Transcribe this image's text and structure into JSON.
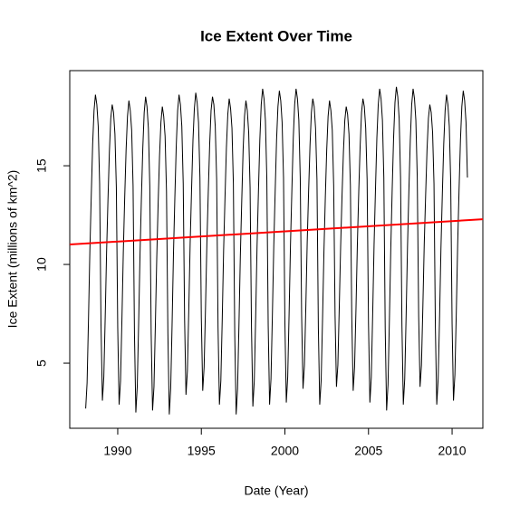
{
  "chart_data": {
    "type": "line",
    "title": "Ice Extent Over Time",
    "xlabel": "Date (Year)",
    "ylabel": "Ice Extent (millions of km^2)",
    "xlim": [
      1987.13,
      2011.84
    ],
    "ylim": [
      1.7,
      19.82
    ],
    "xticks": [
      1990,
      1995,
      2000,
      2005,
      2010
    ],
    "yticks": [
      5,
      10,
      15
    ],
    "x": [
      1988.083,
      1988.167,
      1988.25,
      1988.333,
      1988.417,
      1988.5,
      1988.583,
      1988.667,
      1988.75,
      1988.833,
      1988.917,
      1989,
      1989.083,
      1989.167,
      1989.25,
      1989.333,
      1989.417,
      1989.5,
      1989.583,
      1989.667,
      1989.75,
      1989.833,
      1989.917,
      1990,
      1990.083,
      1990.167,
      1990.25,
      1990.333,
      1990.417,
      1990.5,
      1990.583,
      1990.667,
      1990.75,
      1990.833,
      1990.917,
      1991,
      1991.083,
      1991.167,
      1991.25,
      1991.333,
      1991.417,
      1991.5,
      1991.583,
      1991.667,
      1991.75,
      1991.833,
      1991.917,
      1992,
      1992.083,
      1992.167,
      1992.25,
      1992.333,
      1992.417,
      1992.5,
      1992.583,
      1992.667,
      1992.75,
      1992.833,
      1992.917,
      1993,
      1993.083,
      1993.167,
      1993.25,
      1993.333,
      1993.417,
      1993.5,
      1993.583,
      1993.667,
      1993.75,
      1993.833,
      1993.917,
      1994,
      1994.083,
      1994.167,
      1994.25,
      1994.333,
      1994.417,
      1994.5,
      1994.583,
      1994.667,
      1994.75,
      1994.833,
      1994.917,
      1995,
      1995.083,
      1995.167,
      1995.25,
      1995.333,
      1995.417,
      1995.5,
      1995.583,
      1995.667,
      1995.75,
      1995.833,
      1995.917,
      1996,
      1996.083,
      1996.167,
      1996.25,
      1996.333,
      1996.417,
      1996.5,
      1996.583,
      1996.667,
      1996.75,
      1996.833,
      1996.917,
      1997,
      1997.083,
      1997.167,
      1997.25,
      1997.333,
      1997.417,
      1997.5,
      1997.583,
      1997.667,
      1997.75,
      1997.833,
      1997.917,
      1998,
      1998.083,
      1998.167,
      1998.25,
      1998.333,
      1998.417,
      1998.5,
      1998.583,
      1998.667,
      1998.75,
      1998.833,
      1998.917,
      1999,
      1999.083,
      1999.167,
      1999.25,
      1999.333,
      1999.417,
      1999.5,
      1999.583,
      1999.667,
      1999.75,
      1999.833,
      1999.917,
      2000,
      2000.083,
      2000.167,
      2000.25,
      2000.333,
      2000.417,
      2000.5,
      2000.583,
      2000.667,
      2000.75,
      2000.833,
      2000.917,
      2001,
      2001.083,
      2001.167,
      2001.25,
      2001.333,
      2001.417,
      2001.5,
      2001.583,
      2001.667,
      2001.75,
      2001.833,
      2001.917,
      2002,
      2002.083,
      2002.167,
      2002.25,
      2002.333,
      2002.417,
      2002.5,
      2002.583,
      2002.667,
      2002.75,
      2002.833,
      2002.917,
      2003,
      2003.083,
      2003.167,
      2003.25,
      2003.333,
      2003.417,
      2003.5,
      2003.583,
      2003.667,
      2003.75,
      2003.833,
      2003.917,
      2004,
      2004.083,
      2004.167,
      2004.25,
      2004.333,
      2004.417,
      2004.5,
      2004.583,
      2004.667,
      2004.75,
      2004.833,
      2004.917,
      2005,
      2005.083,
      2005.167,
      2005.25,
      2005.333,
      2005.417,
      2005.5,
      2005.583,
      2005.667,
      2005.75,
      2005.833,
      2005.917,
      2006,
      2006.083,
      2006.167,
      2006.25,
      2006.333,
      2006.417,
      2006.5,
      2006.583,
      2006.667,
      2006.75,
      2006.833,
      2006.917,
      2007,
      2007.083,
      2007.167,
      2007.25,
      2007.333,
      2007.417,
      2007.5,
      2007.583,
      2007.667,
      2007.75,
      2007.833,
      2007.917,
      2008,
      2008.083,
      2008.167,
      2008.25,
      2008.333,
      2008.417,
      2008.5,
      2008.583,
      2008.667,
      2008.75,
      2008.833,
      2008.917,
      2009,
      2009.083,
      2009.167,
      2009.25,
      2009.333,
      2009.417,
      2009.5,
      2009.583,
      2009.667,
      2009.75,
      2009.833,
      2009.917,
      2010,
      2010.083,
      2010.167,
      2010.25,
      2010.333,
      2010.417,
      2010.5,
      2010.583,
      2010.667,
      2010.75,
      2010.833,
      2010.917
    ],
    "series": [
      {
        "color": "#000000",
        "values": [
          2.7,
          4.0,
          7.2,
          10.7,
          13.5,
          16.1,
          17.8,
          18.6,
          18.1,
          17.0,
          14.1,
          6.9,
          3.1,
          4.3,
          7.3,
          10.6,
          13.3,
          15.7,
          17.4,
          18.1,
          17.7,
          16.6,
          13.9,
          6.8,
          2.9,
          4.1,
          7.2,
          10.6,
          13.4,
          15.8,
          17.5,
          18.3,
          17.8,
          16.8,
          14.0,
          6.5,
          2.5,
          3.8,
          7.0,
          10.5,
          13.4,
          15.9,
          17.7,
          18.5,
          18.0,
          16.9,
          14.0,
          6.5,
          2.6,
          3.8,
          6.9,
          10.3,
          13.1,
          15.5,
          17.2,
          18.0,
          17.5,
          16.5,
          13.7,
          6.5,
          2.4,
          3.7,
          6.9,
          10.5,
          13.4,
          16.0,
          17.8,
          18.6,
          18.1,
          17.0,
          14.1,
          7.2,
          3.4,
          4.6,
          7.7,
          11.1,
          13.8,
          16.3,
          17.9,
          18.7,
          18.2,
          17.2,
          14.4,
          7.3,
          3.6,
          4.8,
          7.8,
          11.1,
          13.7,
          16.1,
          17.8,
          18.5,
          18.1,
          17.0,
          14.3,
          6.8,
          2.9,
          4.1,
          7.2,
          10.7,
          13.4,
          15.9,
          17.6,
          18.4,
          17.9,
          16.9,
          14.1,
          6.4,
          2.4,
          3.7,
          6.9,
          10.4,
          13.2,
          15.8,
          17.5,
          18.3,
          17.8,
          16.7,
          13.9,
          6.8,
          2.8,
          4.1,
          7.3,
          10.9,
          13.7,
          16.3,
          18.1,
          18.9,
          18.4,
          17.3,
          14.4,
          6.9,
          2.9,
          4.2,
          7.4,
          10.9,
          13.7,
          16.3,
          18.0,
          18.8,
          18.3,
          17.2,
          14.4,
          7.0,
          3.0,
          4.3,
          7.5,
          11.0,
          13.8,
          16.4,
          18.1,
          18.9,
          18.4,
          17.3,
          14.4,
          7.4,
          3.7,
          4.9,
          7.8,
          11.1,
          13.7,
          16.0,
          17.7,
          18.4,
          18.0,
          16.9,
          14.3,
          6.8,
          2.9,
          4.1,
          7.2,
          10.6,
          13.4,
          15.8,
          17.5,
          18.3,
          17.8,
          16.8,
          14.0,
          7.4,
          3.8,
          4.9,
          7.8,
          10.9,
          13.5,
          15.7,
          17.3,
          18.0,
          17.6,
          16.6,
          14.0,
          7.3,
          3.6,
          4.8,
          7.7,
          11.0,
          13.7,
          16.0,
          17.7,
          18.4,
          18.0,
          16.9,
          14.3,
          7.0,
          3.0,
          4.3,
          7.5,
          11.0,
          13.8,
          16.4,
          18.1,
          18.9,
          18.4,
          17.3,
          14.4,
          6.7,
          2.6,
          3.9,
          7.2,
          10.8,
          13.8,
          16.4,
          18.2,
          19.0,
          18.5,
          17.4,
          14.4,
          6.9,
          2.9,
          4.2,
          7.4,
          10.9,
          13.8,
          16.3,
          18.1,
          18.9,
          18.4,
          17.3,
          14.4,
          7.4,
          3.8,
          4.9,
          7.8,
          11.0,
          13.5,
          15.8,
          17.4,
          18.1,
          17.7,
          16.7,
          14.1,
          6.8,
          2.9,
          4.2,
          7.3,
          10.8,
          13.6,
          16.1,
          17.8,
          18.6,
          18.1,
          17.0,
          14.2,
          7.0,
          3.1,
          4.4,
          7.5,
          11.0,
          13.8,
          16.3,
          18.0,
          18.8,
          18.3,
          17.2,
          14.4
        ]
      },
      {
        "color": "#ff0000",
        "x": [
          1987.13,
          2011.84
        ],
        "values": [
          11.01,
          12.29
        ]
      }
    ]
  }
}
